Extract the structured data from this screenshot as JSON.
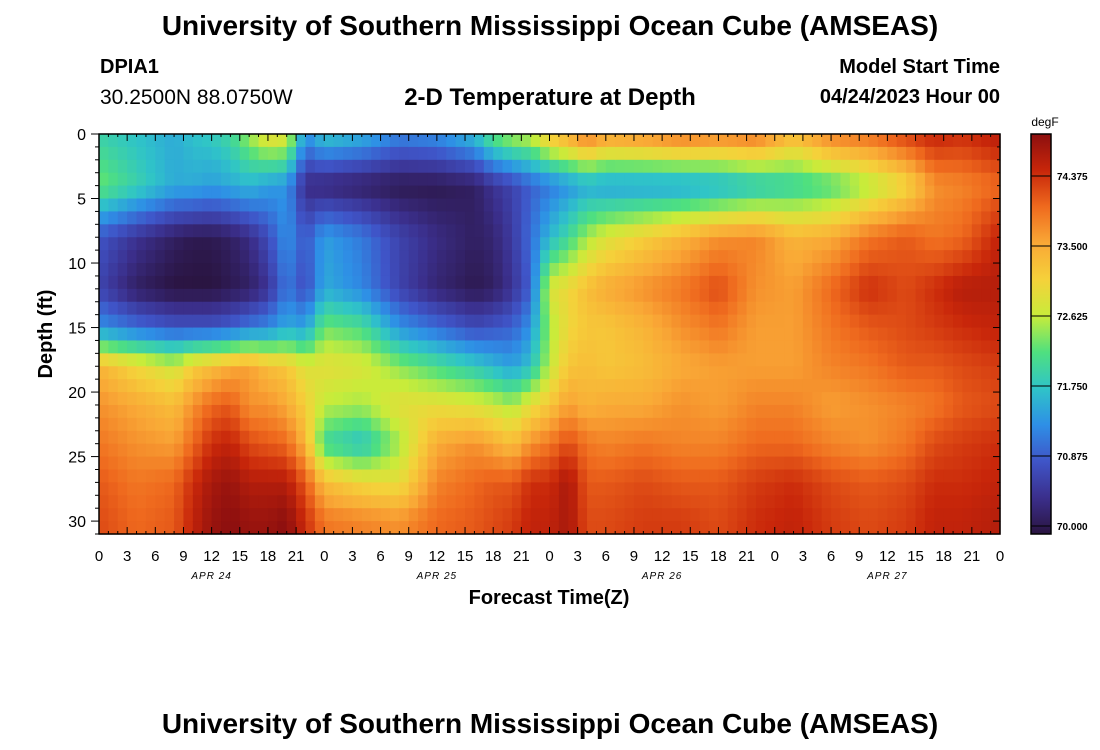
{
  "header": {
    "title": "University of Southern Mississippi Ocean Cube (AMSEAS)",
    "station": "DPIA1",
    "coords": "30.2500N  88.0750W",
    "subtitle": "2-D Temperature at Depth",
    "model_start_label": "Model Start Time",
    "model_start_value": "04/24/2023 Hour 00",
    "bottom_title": "University of Southern Mississippi Ocean Cube (AMSEAS)"
  },
  "chart_data": {
    "type": "heatmap",
    "title": "2-D Temperature at Depth",
    "xlabel": "Forecast Time(Z)",
    "ylabel": "Depth (ft)",
    "unit": "degF",
    "x_hours": [
      0,
      3,
      6,
      9,
      12,
      15,
      18,
      21,
      24,
      27,
      30,
      33,
      36,
      39,
      42,
      45,
      48,
      51,
      54,
      57,
      60,
      63,
      66,
      69,
      72,
      75,
      78,
      81,
      84,
      87,
      90,
      93,
      96
    ],
    "x_tick_labels": [
      "0",
      "3",
      "6",
      "9",
      "12",
      "15",
      "18",
      "21",
      "0",
      "3",
      "6",
      "9",
      "12",
      "15",
      "18",
      "21",
      "0",
      "3",
      "6",
      "9",
      "12",
      "15",
      "18",
      "21",
      "0",
      "3",
      "6",
      "9",
      "12",
      "15",
      "18",
      "21",
      "0"
    ],
    "day_labels": [
      {
        "hour": 12,
        "label": "APR 24"
      },
      {
        "hour": 36,
        "label": "APR 25"
      },
      {
        "hour": 60,
        "label": "APR 26"
      },
      {
        "hour": 84,
        "label": "APR 27"
      }
    ],
    "y_depths": [
      0,
      5,
      10,
      15,
      20,
      25,
      30
    ],
    "y_tick_labels": [
      "0",
      "5",
      "10",
      "15",
      "20",
      "25",
      "30"
    ],
    "ylim": [
      0,
      31
    ],
    "xlim": [
      0,
      96
    ],
    "colorbar": {
      "label": "degF",
      "min": 69.9,
      "max": 74.9,
      "ticks": [
        70.0,
        70.875,
        71.75,
        72.625,
        73.5,
        74.375
      ],
      "tick_labels": [
        "70.000",
        "70.875",
        "71.750",
        "72.625",
        "73.500",
        "74.375"
      ],
      "stops": [
        "#2a1440",
        "#3b2f8c",
        "#3f55c8",
        "#2e8fe6",
        "#2fc4c8",
        "#4fe07f",
        "#c8ec3a",
        "#f5d13a",
        "#f9a836",
        "#ef6a1e",
        "#c8260a",
        "#8c0f0f"
      ]
    },
    "grid_depths": [
      0,
      4,
      8,
      12,
      15,
      18,
      21,
      24,
      27,
      30,
      31
    ],
    "grid_hours": [
      0,
      4,
      8,
      10,
      12,
      14,
      16,
      18,
      20,
      22,
      24,
      28,
      32,
      36,
      40,
      42,
      44,
      46,
      48,
      50,
      52,
      54,
      58,
      62,
      66,
      70,
      74,
      78,
      82,
      86,
      89,
      92,
      96
    ],
    "grid_values": [
      [
        71.9,
        71.7,
        71.5,
        71.7,
        71.8,
        72.0,
        72.5,
        73.0,
        72.9,
        71.3,
        71.8,
        71.6,
        71.2,
        71.3,
        71.7,
        72.3,
        72.6,
        72.7,
        73.3,
        73.6,
        74.0,
        73.7,
        73.8,
        74.0,
        73.9,
        74.0,
        73.4,
        73.9,
        74.0,
        74.3,
        74.5,
        74.4,
        74.6
      ],
      [
        72.3,
        71.9,
        71.5,
        71.5,
        71.4,
        71.5,
        71.6,
        71.4,
        71.3,
        70.3,
        70.2,
        70.1,
        70.0,
        70.0,
        70.1,
        70.4,
        70.6,
        70.9,
        71.1,
        71.3,
        71.5,
        71.4,
        71.4,
        71.4,
        71.5,
        71.7,
        71.9,
        72.1,
        72.5,
        73.0,
        73.7,
        73.8,
        74.0
      ],
      [
        70.8,
        70.4,
        70.1,
        70.0,
        70.0,
        70.1,
        70.3,
        70.7,
        71.3,
        70.8,
        71.4,
        71.1,
        70.6,
        70.3,
        70.1,
        70.2,
        70.5,
        71.0,
        71.6,
        72.0,
        72.5,
        72.8,
        73.1,
        73.4,
        73.7,
        73.8,
        73.4,
        73.5,
        73.9,
        74.1,
        73.9,
        74.0,
        74.5
      ],
      [
        70.6,
        70.1,
        69.9,
        69.9,
        69.9,
        70.0,
        70.1,
        70.4,
        71.1,
        70.7,
        71.5,
        71.2,
        70.6,
        70.2,
        70.0,
        70.1,
        70.4,
        70.9,
        72.8,
        73.0,
        73.3,
        73.5,
        73.7,
        73.9,
        74.2,
        73.7,
        73.6,
        74.0,
        74.4,
        74.2,
        74.4,
        74.6,
        74.6
      ],
      [
        71.3,
        71.0,
        70.8,
        70.8,
        70.8,
        70.9,
        71.1,
        71.2,
        71.5,
        71.4,
        72.3,
        72.1,
        71.3,
        71.0,
        70.7,
        70.8,
        70.9,
        71.3,
        72.5,
        73.0,
        73.2,
        73.2,
        73.4,
        73.7,
        73.9,
        73.6,
        73.6,
        73.9,
        74.1,
        74.2,
        74.3,
        74.4,
        74.5
      ],
      [
        73.4,
        73.0,
        72.7,
        73.1,
        73.3,
        73.5,
        73.6,
        73.3,
        73.2,
        72.8,
        72.9,
        72.8,
        72.4,
        72.1,
        71.8,
        71.6,
        71.4,
        71.7,
        72.6,
        73.2,
        73.3,
        73.2,
        73.3,
        73.5,
        73.6,
        73.6,
        73.6,
        73.8,
        73.9,
        74.1,
        74.1,
        74.2,
        74.3
      ],
      [
        73.7,
        73.5,
        73.3,
        73.7,
        74.0,
        74.1,
        73.7,
        73.7,
        73.5,
        73.1,
        72.6,
        72.5,
        72.9,
        72.9,
        72.8,
        72.7,
        72.5,
        72.9,
        73.2,
        73.6,
        73.4,
        73.5,
        73.5,
        73.7,
        73.6,
        73.8,
        73.8,
        73.6,
        73.7,
        73.8,
        73.9,
        74.1,
        74.2
      ],
      [
        73.9,
        73.7,
        73.6,
        74.0,
        74.4,
        74.5,
        74.2,
        74.1,
        74.0,
        73.4,
        72.0,
        71.7,
        72.5,
        73.5,
        73.7,
        73.5,
        73.3,
        73.7,
        73.9,
        74.2,
        73.9,
        73.8,
        73.9,
        73.8,
        73.8,
        74.0,
        74.0,
        73.8,
        73.7,
        73.9,
        74.2,
        74.3,
        74.4
      ],
      [
        74.1,
        73.9,
        74.0,
        74.4,
        74.7,
        74.8,
        74.6,
        74.6,
        74.6,
        74.1,
        73.3,
        73.0,
        72.9,
        73.8,
        74.0,
        74.1,
        74.1,
        74.4,
        74.4,
        74.7,
        74.1,
        74.1,
        74.2,
        74.1,
        74.1,
        74.3,
        74.4,
        74.2,
        74.1,
        74.2,
        74.4,
        74.4,
        74.5
      ],
      [
        74.2,
        74.0,
        74.1,
        74.5,
        74.8,
        74.9,
        74.8,
        74.8,
        74.9,
        74.4,
        73.9,
        73.8,
        73.7,
        74.0,
        74.1,
        74.2,
        74.3,
        74.5,
        74.5,
        74.7,
        74.2,
        74.2,
        74.3,
        74.3,
        74.2,
        74.4,
        74.5,
        74.3,
        74.2,
        74.3,
        74.5,
        74.5,
        74.6
      ],
      [
        74.2,
        74.0,
        74.1,
        74.5,
        74.8,
        74.9,
        74.8,
        74.8,
        74.9,
        74.4,
        73.9,
        73.8,
        73.7,
        74.0,
        74.1,
        74.2,
        74.3,
        74.5,
        74.5,
        74.7,
        74.2,
        74.2,
        74.3,
        74.3,
        74.2,
        74.4,
        74.5,
        74.3,
        74.2,
        74.3,
        74.5,
        74.5,
        74.6
      ]
    ]
  }
}
